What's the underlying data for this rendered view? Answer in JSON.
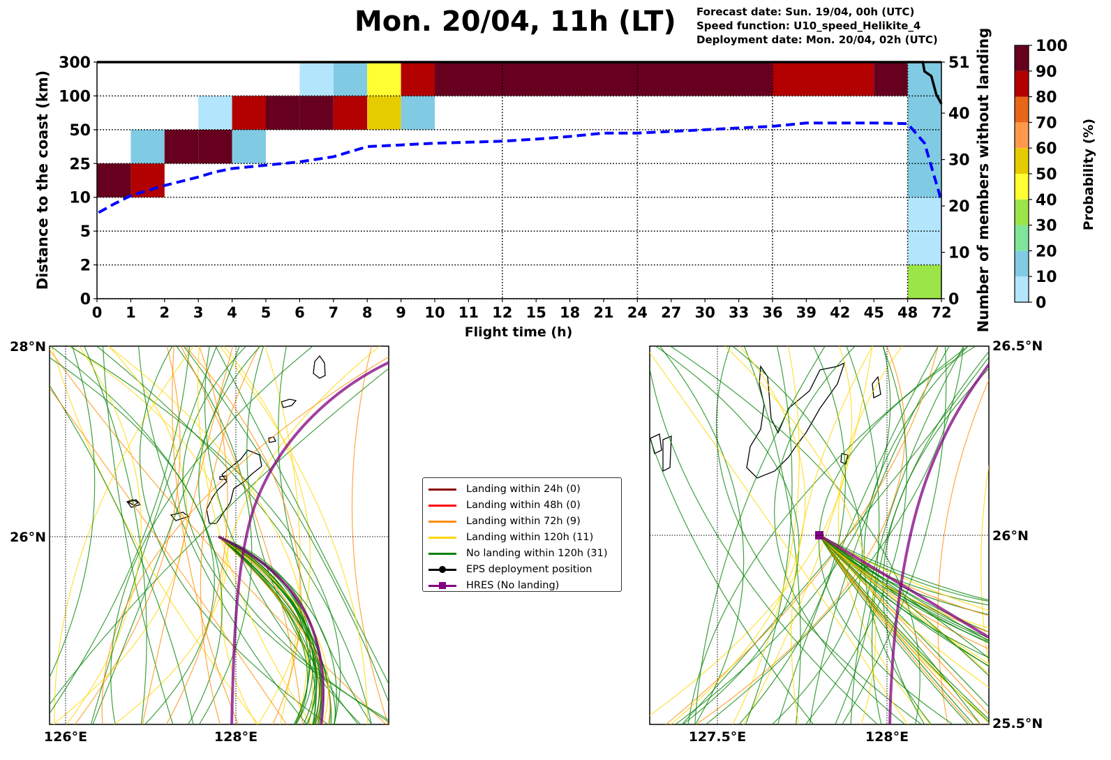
{
  "header": {
    "title": "Mon. 20/04, 11h (LT)",
    "forecast_date": "Forecast date: Sun. 19/04, 00h (UTC)",
    "speed_function": "Speed function: U10_speed_Helikite_4",
    "deployment_date": "Deployment date: Mon. 20/04, 02h (UTC)"
  },
  "colors": {
    "prob_bins": [
      "#b3e5fc",
      "#80cbe3",
      "#80e59b",
      "#9be548",
      "#ffff33",
      "#e5cc00",
      "#ff9a4d",
      "#e6661a",
      "#b30000",
      "#66001e"
    ],
    "mean_distance_line": "#0000ff",
    "members_line": "#000000",
    "landing_24h": "#8b0000",
    "landing_48h": "#ff0000",
    "landing_72h": "#ff8c00",
    "landing_120h": "#ffd700",
    "no_landing": "#008000",
    "hres": "#800080",
    "eps_position": "#000000"
  },
  "chart_data": [
    {
      "type": "heatmap",
      "title": "Mon. 20/04, 11h (LT)",
      "xlabel": "Flight time (h)",
      "ylabel": "Distance to the coast (km)",
      "y2label": "Number of members without landing",
      "x_ticks": [
        "0",
        "1",
        "2",
        "3",
        "4",
        "5",
        "6",
        "7",
        "8",
        "9",
        "10",
        "11",
        "12",
        "15",
        "18",
        "21",
        "24",
        "27",
        "30",
        "33",
        "36",
        "39",
        "42",
        "45",
        "48",
        "72"
      ],
      "y_ticks": [
        "0",
        "2",
        "5",
        "10",
        "25",
        "50",
        "100",
        "300"
      ],
      "y2_ticks": [
        "0",
        "10",
        "20",
        "30",
        "40",
        "51"
      ],
      "y2_range": [
        0,
        51
      ],
      "grid": "dotted",
      "x_gridlines_at": [
        "12",
        "24",
        "36",
        "48"
      ],
      "colorbar": {
        "label": "Probability (%)",
        "ticks": [
          "0",
          "10",
          "20",
          "30",
          "40",
          "50",
          "60",
          "70",
          "80",
          "90",
          "100"
        ]
      },
      "cells": [
        {
          "x": [
            0,
            1
          ],
          "y_band": [
            10,
            25
          ],
          "prob": 95
        },
        {
          "x": [
            1,
            2
          ],
          "y_band": [
            10,
            25
          ],
          "prob": 85
        },
        {
          "x": [
            1,
            2
          ],
          "y_band": [
            25,
            50
          ],
          "prob": 15
        },
        {
          "x": [
            2,
            3
          ],
          "y_band": [
            25,
            50
          ],
          "prob": 95
        },
        {
          "x": [
            3,
            4
          ],
          "y_band": [
            25,
            50
          ],
          "prob": 95
        },
        {
          "x": [
            4,
            5
          ],
          "y_band": [
            25,
            50
          ],
          "prob": 15
        },
        {
          "x": [
            3,
            4
          ],
          "y_band": [
            50,
            100
          ],
          "prob": 5
        },
        {
          "x": [
            4,
            5
          ],
          "y_band": [
            50,
            100
          ],
          "prob": 85
        },
        {
          "x": [
            5,
            6
          ],
          "y_band": [
            50,
            100
          ],
          "prob": 95
        },
        {
          "x": [
            6,
            7
          ],
          "y_band": [
            50,
            100
          ],
          "prob": 95
        },
        {
          "x": [
            7,
            8
          ],
          "y_band": [
            50,
            100
          ],
          "prob": 85
        },
        {
          "x": [
            8,
            9
          ],
          "y_band": [
            50,
            100
          ],
          "prob": 55
        },
        {
          "x": [
            9,
            10
          ],
          "y_band": [
            50,
            100
          ],
          "prob": 15
        },
        {
          "x": [
            6,
            7
          ],
          "y_band": [
            100,
            300
          ],
          "prob": 5
        },
        {
          "x": [
            7,
            8
          ],
          "y_band": [
            100,
            300
          ],
          "prob": 15
        },
        {
          "x": [
            8,
            9
          ],
          "y_band": [
            100,
            300
          ],
          "prob": 45
        },
        {
          "x": [
            9,
            10
          ],
          "y_band": [
            100,
            300
          ],
          "prob": 85
        },
        {
          "x": [
            10,
            36
          ],
          "y_band": [
            100,
            300
          ],
          "prob": 95
        },
        {
          "x": [
            36,
            45
          ],
          "y_band": [
            100,
            300
          ],
          "prob": 85
        },
        {
          "x": [
            45,
            48
          ],
          "y_band": [
            100,
            300
          ],
          "prob": 95
        },
        {
          "x": [
            48,
            72
          ],
          "y_band": [
            0,
            2
          ],
          "prob": 35
        },
        {
          "x": [
            48,
            72
          ],
          "y_band": [
            2,
            10
          ],
          "prob": 5
        },
        {
          "x": [
            48,
            72
          ],
          "y_band": [
            10,
            300
          ],
          "prob": 15
        }
      ],
      "series": [
        {
          "name": "Mean distance to the coast",
          "style": "dashed",
          "axis": "left",
          "x_index": [
            0.05,
            0.5,
            1,
            1.5,
            2,
            3,
            3.5,
            4,
            5,
            6,
            7,
            8,
            9,
            10,
            11,
            12,
            13,
            14,
            15,
            16,
            17,
            18,
            19,
            20,
            21,
            22,
            23,
            24,
            24.5,
            25
          ],
          "y_band_pos": [
            2.55,
            2.8,
            3.05,
            3.2,
            3.35,
            3.6,
            3.75,
            3.85,
            3.95,
            4.05,
            4.2,
            4.5,
            4.55,
            4.6,
            4.63,
            4.66,
            4.72,
            4.8,
            4.9,
            4.9,
            4.95,
            5.0,
            5.05,
            5.1,
            5.2,
            5.2,
            5.2,
            5.18,
            4.6,
            2.9
          ]
        },
        {
          "name": "Number of members without landing",
          "style": "solid",
          "axis": "right",
          "x_index": [
            0,
            24.3,
            24.45,
            24.5,
            24.7,
            24.85,
            25
          ],
          "members": [
            51,
            51,
            51,
            49,
            48,
            44,
            42
          ]
        }
      ]
    },
    {
      "type": "map",
      "name": "Overview map",
      "lat_labels": [
        "28°N",
        "26°N"
      ],
      "lon_labels": [
        "126°E",
        "128°E"
      ]
    },
    {
      "type": "map",
      "name": "Zoomed map",
      "lat_labels": [
        "26.5°N",
        "26°N",
        "25.5°N"
      ],
      "lon_labels": [
        "127.5°E",
        "128°E"
      ]
    }
  ],
  "legend": {
    "items": [
      {
        "label": "Landing within 24h (0)",
        "kind": "line",
        "color_key": "landing_24h"
      },
      {
        "label": "Landing within 48h (0)",
        "kind": "line",
        "color_key": "landing_48h"
      },
      {
        "label": "Landing within 72h (9)",
        "kind": "line",
        "color_key": "landing_72h"
      },
      {
        "label": "Landing within 120h (11)",
        "kind": "line",
        "color_key": "landing_120h"
      },
      {
        "label": "No landing within 120h (31)",
        "kind": "line",
        "color_key": "no_landing"
      },
      {
        "label": "EPS deployment position",
        "kind": "circle",
        "color_key": "eps_position"
      },
      {
        "label": "HRES (No landing)",
        "kind": "square",
        "color_key": "hres"
      }
    ]
  }
}
